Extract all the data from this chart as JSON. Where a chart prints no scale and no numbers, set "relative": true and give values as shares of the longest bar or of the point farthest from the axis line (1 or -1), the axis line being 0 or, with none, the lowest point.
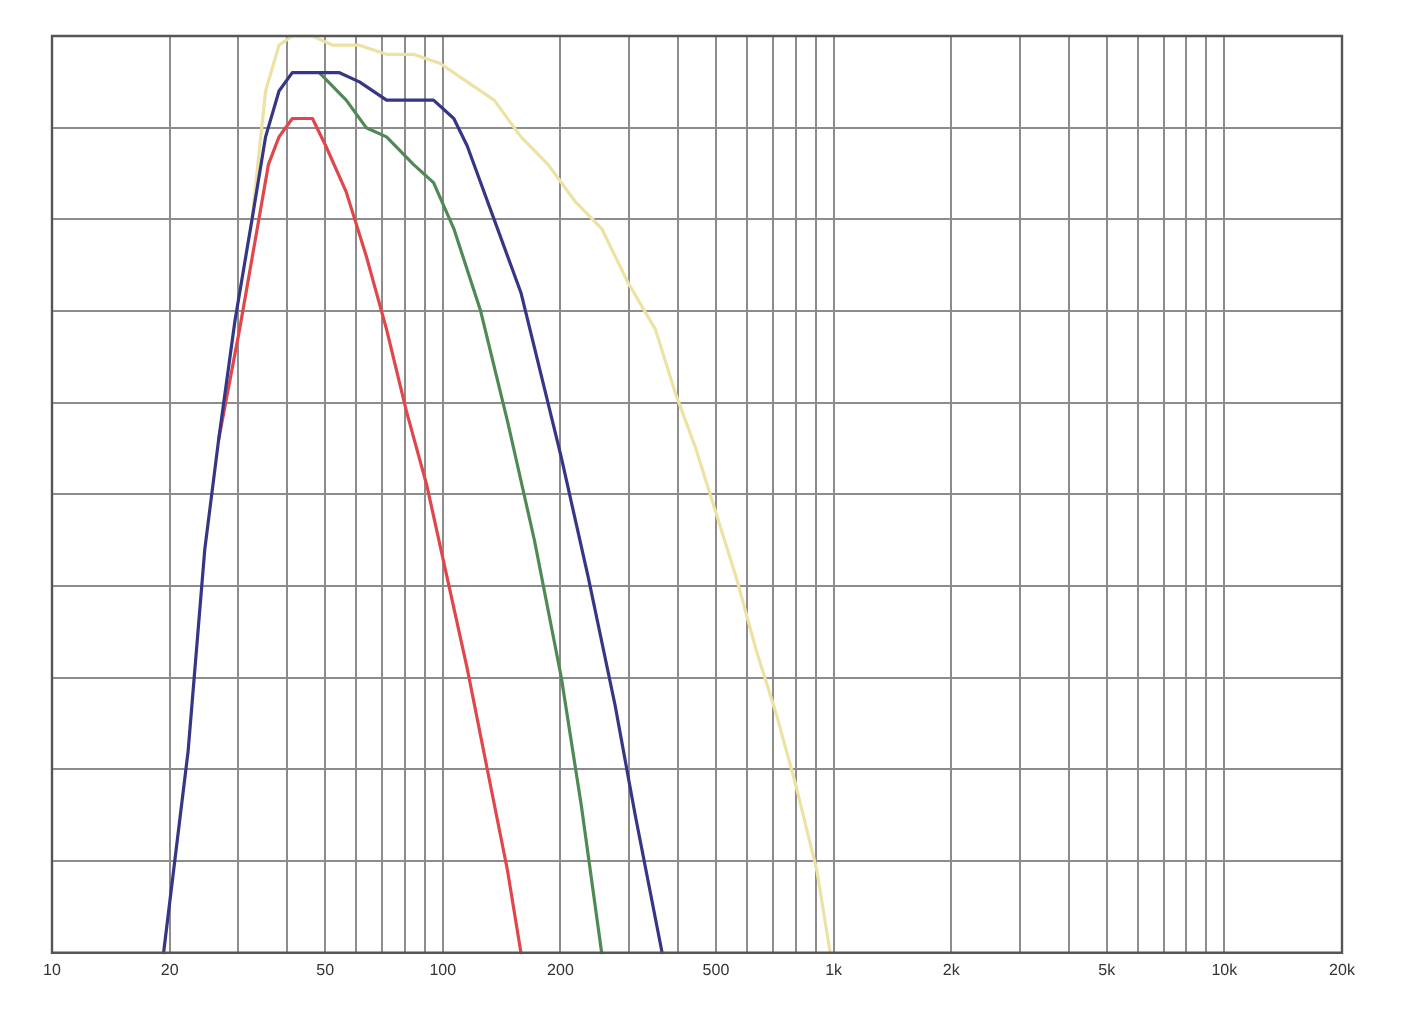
{
  "chart_data": {
    "type": "line",
    "relative": true,
    "log": "x",
    "grid": true,
    "xlim": [
      10,
      20000
    ],
    "xticks": [
      10,
      20,
      {
        "value": 30,
        "label": null
      },
      {
        "value": 40,
        "label": null
      },
      50,
      {
        "value": 60,
        "label": null
      },
      {
        "value": 70,
        "label": null
      },
      {
        "value": 80,
        "label": null
      },
      {
        "value": 90,
        "label": null
      },
      100,
      200,
      {
        "value": 300,
        "label": null
      },
      {
        "value": 400,
        "label": null
      },
      500,
      {
        "value": 600,
        "label": null
      },
      {
        "value": 700,
        "label": null
      },
      {
        "value": 800,
        "label": null
      },
      {
        "value": 900,
        "label": null
      },
      {
        "value": 1000,
        "label": "1k"
      },
      {
        "value": 2000,
        "label": "2k"
      },
      {
        "value": 3000,
        "label": null
      },
      {
        "value": 4000,
        "label": null
      },
      {
        "value": 5000,
        "label": "5k"
      },
      {
        "value": 6000,
        "label": null
      },
      {
        "value": 7000,
        "label": null
      },
      {
        "value": 8000,
        "label": null
      },
      {
        "value": 9000,
        "label": null
      },
      {
        "value": 10000,
        "label": "10k"
      },
      {
        "value": 20000,
        "label": "20k"
      }
    ],
    "series": [
      {
        "color": "#363687",
        "x": [
          19.3,
          22.3,
          24.6,
          26.7,
          29.4,
          32.5,
          35.2,
          38.1,
          41.2,
          48.3,
          54.4,
          61.2,
          71.8,
          84.1,
          94.7,
          106.7,
          115.5,
          135.3,
          158.5,
          185.8,
          201.1,
          235.5,
          276,
          310.8,
          364.1
        ],
        "values": [
          0,
          0.22,
          0.44,
          0.56,
          0.69,
          0.8,
          0.89,
          0.94,
          0.96,
          0.96,
          0.96,
          0.95,
          0.93,
          0.93,
          0.93,
          0.91,
          0.88,
          0.8,
          0.72,
          0.6,
          0.54,
          0.41,
          0.27,
          0.15,
          0
        ]
      },
      {
        "color": "#4f8a56",
        "x": [
          48.3,
          56.6,
          63.7,
          71.8,
          84.1,
          94.7,
          106.7,
          125,
          146.4,
          171.6,
          201.1,
          226.3,
          255
        ],
        "values": [
          0.96,
          0.93,
          0.9,
          0.89,
          0.86,
          0.84,
          0.79,
          0.7,
          0.58,
          0.45,
          0.3,
          0.16,
          0
        ]
      },
      {
        "color": "#e0474c",
        "x": [
          26.7,
          30.2,
          33.2,
          35.8,
          38.1,
          41.2,
          43.7,
          46.4,
          50.2,
          56.6,
          63.7,
          71.8,
          80.8,
          91,
          102.5,
          115.5,
          130,
          146.4,
          158.5
        ],
        "values": [
          0.56,
          0.68,
          0.78,
          0.86,
          0.89,
          0.91,
          0.91,
          0.91,
          0.88,
          0.83,
          0.76,
          0.68,
          0.59,
          0.51,
          0.41,
          0.31,
          0.2,
          0.09,
          0
        ]
      },
      {
        "color": "#ece2a4",
        "x": [
          32.5,
          35.2,
          38.1,
          41.2,
          46.4,
          52.3,
          61.2,
          71.8,
          84.1,
          98.5,
          115.5,
          135.3,
          158.5,
          185.8,
          217.7,
          255,
          298.7,
          350,
          394,
          444,
          500,
          563,
          634,
          714,
          804,
          906,
          980
        ],
        "values": [
          0.8,
          0.94,
          0.99,
          1,
          1,
          0.99,
          0.99,
          0.98,
          0.98,
          0.97,
          0.95,
          0.93,
          0.89,
          0.86,
          0.82,
          0.79,
          0.73,
          0.68,
          0.61,
          0.55,
          0.48,
          0.41,
          0.33,
          0.26,
          0.18,
          0.09,
          0
        ]
      }
    ]
  }
}
